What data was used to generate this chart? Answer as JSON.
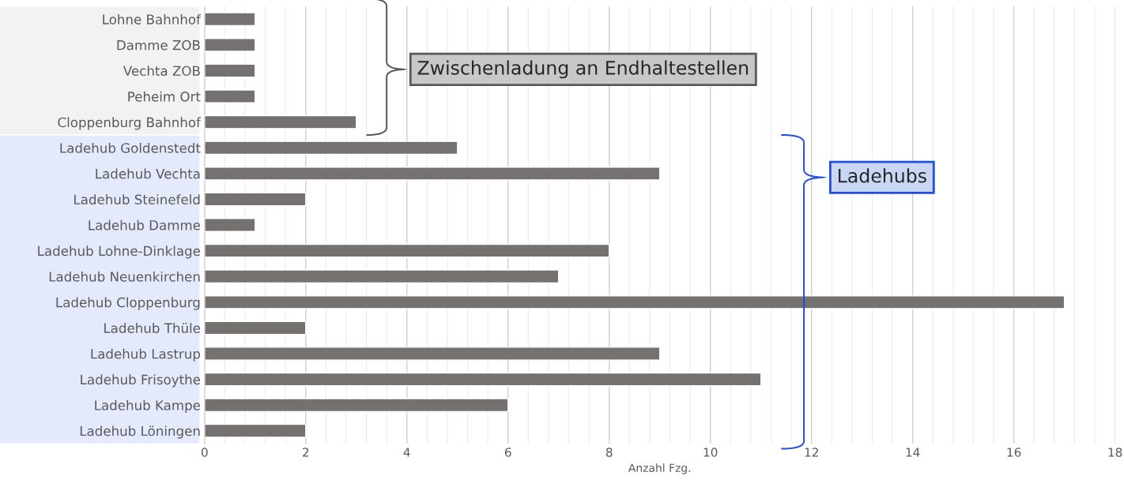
{
  "chart_data": {
    "type": "bar",
    "orientation": "horizontal",
    "xlabel": "Anzahl Fzg.",
    "categories": [
      "Lohne Bahnhof",
      "Damme ZOB",
      "Vechta ZOB",
      "Peheim Ort",
      "Cloppenburg Bahnhof",
      "Ladehub Goldenstedt",
      "Ladehub Vechta",
      "Ladehub Steinefeld",
      "Ladehub Damme",
      "Ladehub Lohne-Dinklage",
      "Ladehub Neuenkirchen",
      "Ladehub Cloppenburg",
      "Ladehub Thüle",
      "Ladehub Lastrup",
      "Ladehub Frisoythe",
      "Ladehub Kampe",
      "Ladehub Löningen"
    ],
    "values": [
      1,
      1,
      1,
      1,
      3,
      5,
      9,
      2,
      1,
      8,
      7,
      17,
      2,
      9,
      11,
      6,
      2
    ],
    "color": "#767171",
    "xlim": [
      0,
      18
    ],
    "xticks": [
      0,
      2,
      4,
      6,
      8,
      10,
      12,
      14,
      16,
      18
    ],
    "grid": "x",
    "annotations": [
      "Zwischenladung an Endhaltestellen",
      "Ladehubs"
    ]
  }
}
